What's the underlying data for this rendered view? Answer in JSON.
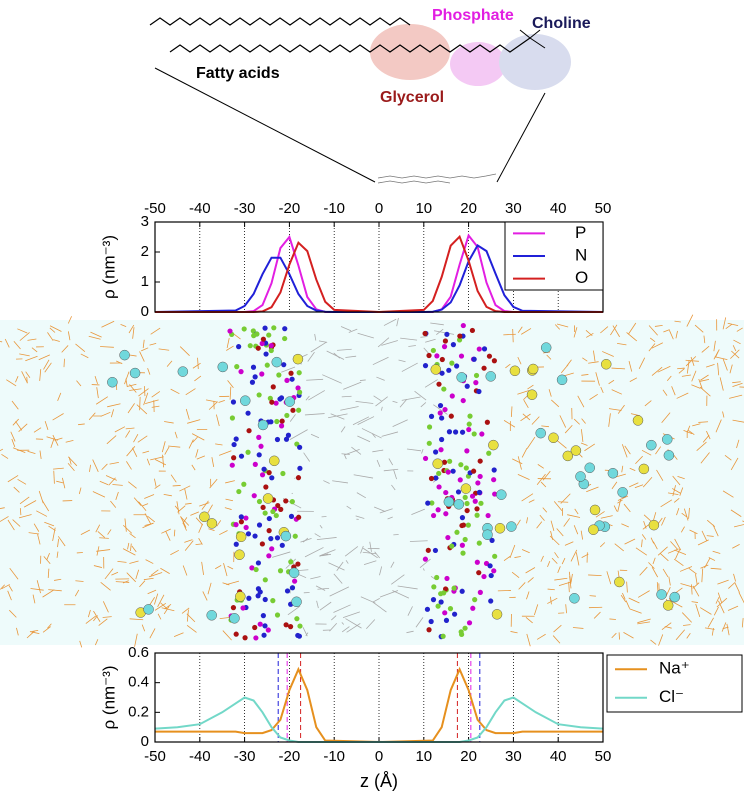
{
  "molecule": {
    "labels": {
      "phosphate": "Phosphate",
      "choline": "Choline",
      "fatty_acids": "Fatty acids",
      "glycerol": "Glycerol"
    }
  },
  "chart_data": [
    {
      "type": "line",
      "ylabel": "ρ (nm⁻³)",
      "x": [
        -50,
        -32,
        -30,
        -28,
        -26,
        -24,
        -22,
        -20,
        -18,
        -16,
        -14,
        -12,
        -10,
        0,
        10,
        12,
        14,
        16,
        18,
        20,
        22,
        24,
        26,
        28,
        30,
        32,
        50
      ],
      "series": [
        {
          "name": "P",
          "color": "#e21ee2",
          "values": [
            0,
            0,
            0,
            0.03,
            0.23,
            0.96,
            2.13,
            2.5,
            1.55,
            0.5,
            0.09,
            0,
            0,
            0,
            0,
            0,
            0.09,
            0.51,
            1.58,
            2.55,
            2.17,
            0.98,
            0.23,
            0.03,
            0,
            0,
            0
          ]
        },
        {
          "name": "N",
          "color": "#2020d8",
          "values": [
            0,
            0.05,
            0.2,
            0.6,
            1.26,
            1.81,
            1.81,
            1.26,
            0.6,
            0.2,
            0.05,
            0.01,
            0,
            0,
            0,
            0.01,
            0.08,
            0.32,
            0.89,
            1.69,
            2.22,
            2.03,
            1.28,
            0.56,
            0.17,
            0.04,
            0
          ]
        },
        {
          "name": "O",
          "color": "#d42020",
          "values": [
            0,
            0,
            0,
            0,
            0.02,
            0.16,
            0.65,
            1.58,
            2.31,
            2.03,
            1.08,
            0.34,
            0.07,
            0,
            0.07,
            0.37,
            1.17,
            2.21,
            2.51,
            1.71,
            0.7,
            0.17,
            0.03,
            0,
            0,
            0,
            0
          ]
        }
      ],
      "xlim": [
        -50,
        50
      ],
      "xticks": [
        -50,
        -40,
        -30,
        -20,
        -10,
        0,
        10,
        20,
        30,
        40,
        50
      ],
      "ylim": [
        0,
        3
      ],
      "yticks": [
        0,
        1,
        2,
        3
      ],
      "grid": true,
      "x_axis_side": "top",
      "legend": "upper right"
    },
    {
      "type": "line",
      "xlabel": "z (Å)",
      "ylabel": "ρ (nm⁻³)",
      "x": [
        -50,
        -45,
        -40,
        -35,
        -32,
        -30,
        -28,
        -26,
        -24,
        -22,
        -20,
        -18,
        -16,
        -14,
        -12,
        0,
        12,
        14,
        16,
        18,
        20,
        22,
        24,
        26,
        28,
        30,
        32,
        35,
        40,
        45,
        50
      ],
      "series": [
        {
          "name": "Na⁺",
          "color": "#e6901e",
          "values": [
            0.07,
            0.07,
            0.07,
            0.07,
            0.07,
            0.06,
            0.06,
            0.06,
            0.08,
            0.15,
            0.35,
            0.49,
            0.35,
            0.1,
            0.01,
            0,
            0.01,
            0.1,
            0.35,
            0.49,
            0.35,
            0.15,
            0.08,
            0.06,
            0.06,
            0.06,
            0.07,
            0.07,
            0.07,
            0.07,
            0.07
          ]
        },
        {
          "name": "Cl⁻",
          "color": "#72d8c8",
          "values": [
            0.09,
            0.1,
            0.12,
            0.2,
            0.26,
            0.3,
            0.28,
            0.2,
            0.1,
            0.03,
            0.01,
            0,
            0,
            0,
            0,
            0,
            0,
            0,
            0,
            0,
            0.01,
            0.03,
            0.1,
            0.2,
            0.28,
            0.3,
            0.26,
            0.2,
            0.12,
            0.1,
            0.09
          ]
        }
      ],
      "vlines": [
        {
          "x": -22.5,
          "color": "#2020d8"
        },
        {
          "x": -20.5,
          "color": "#e21ee2"
        },
        {
          "x": -17.5,
          "color": "#d42020"
        },
        {
          "x": 17.5,
          "color": "#d42020"
        },
        {
          "x": 20.5,
          "color": "#e21ee2"
        },
        {
          "x": 22.5,
          "color": "#2020d8"
        }
      ],
      "xlim": [
        -50,
        50
      ],
      "xticks": [
        -50,
        -40,
        -30,
        -20,
        -10,
        0,
        10,
        20,
        30,
        40,
        50
      ],
      "ylim": [
        0,
        0.6
      ],
      "yticks": [
        0,
        0.2,
        0.4,
        0.6
      ],
      "grid": true,
      "x_axis_side": "bottom",
      "legend": "outside right"
    }
  ]
}
